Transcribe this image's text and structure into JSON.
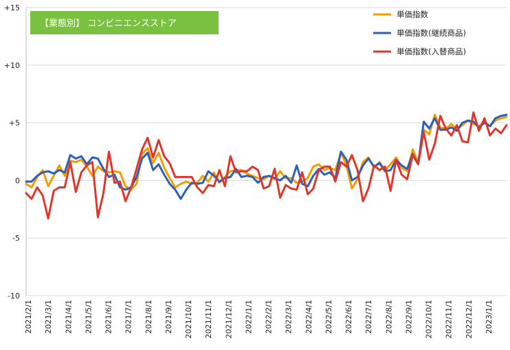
{
  "chart_data": {
    "type": "line",
    "title": "【業態別】 コンビニエンスストア",
    "title_bg_color": "#7ac142",
    "ylim": [
      -10,
      15
    ],
    "y_ticks": [
      15,
      10,
      5,
      0,
      -5,
      -10
    ],
    "y_tick_labels": [
      "+15",
      "+10",
      "+5",
      "0",
      "-5",
      "-10"
    ],
    "grid": "horizontal",
    "legend_position": "top-right",
    "x_tick_labels": [
      "2021/2/1",
      "2021/3/1",
      "2021/4/1",
      "2021/5/1",
      "2021/6/1",
      "2021/7/1",
      "2021/8/1",
      "2021/9/1",
      "2021/10/1",
      "2021/11/1",
      "2021/12/1",
      "2022/1/1",
      "2022/2/1",
      "2022/3/1",
      "2022/4/1",
      "2022/5/1",
      "2022/6/1",
      "2022/7/1",
      "2022/8/1",
      "2022/9/1",
      "2022/10/1",
      "2022/11/1",
      "2022/12/1",
      "2023/1/1"
    ],
    "series": [
      {
        "name": "単価指数",
        "color": "#f59c00",
        "values": [
          -0.3,
          -0.6,
          0.3,
          0.9,
          -0.5,
          0.4,
          1.3,
          0.4,
          1.7,
          1.6,
          1.8,
          1.2,
          0.4,
          1.2,
          0.8,
          0.7,
          0.8,
          0.7,
          -0.5,
          -0.8,
          -0.3,
          2.3,
          2.8,
          1.5,
          2.4,
          1.1,
          0.2,
          -0.6,
          -0.3,
          -0.1,
          -0.3,
          -0.2,
          0.4,
          -0.1,
          0.7,
          -0.2,
          0.3,
          0.8,
          0.9,
          0.9,
          0.6,
          0.4,
          0.2,
          0.1,
          0.4,
          0.1,
          0.8,
          0.2,
          0.2,
          -0.2,
          -0.1,
          0.2,
          1.2,
          1.4,
          0.9,
          1.1,
          0.9,
          2.4,
          1.3,
          -0.7,
          0.1,
          1.6,
          2.0,
          1.1,
          1.6,
          0.9,
          1.4,
          2.0,
          1.1,
          0.8,
          2.7,
          1.6,
          4.4,
          4.0,
          5.7,
          4.6,
          4.5,
          4.9,
          4.4,
          4.8,
          5.2,
          4.9,
          4.7,
          5.1,
          4.7,
          5.2,
          5.4,
          5.5
        ]
      },
      {
        "name": "単価指数(継続商品)",
        "color": "#2e5fb8",
        "values": [
          -0.1,
          -0.1,
          0.4,
          0.7,
          0.8,
          0.6,
          0.9,
          0.7,
          2.2,
          1.9,
          2.1,
          1.4,
          2.0,
          1.9,
          1.0,
          0.3,
          0.5,
          -0.6,
          -0.8,
          -0.6,
          0.3,
          1.9,
          2.4,
          0.9,
          1.4,
          0.5,
          -0.3,
          -0.8,
          -1.6,
          -0.8,
          -0.2,
          -0.3,
          -0.2,
          0.8,
          0.4,
          -0.1,
          0.2,
          0.3,
          1.0,
          0.3,
          0.4,
          0.3,
          -0.2,
          0.3,
          0.4,
          0.2,
          0.0,
          0.4,
          -0.2,
          1.3,
          -0.3,
          -0.5,
          0.4,
          1.0,
          0.5,
          0.7,
          0.2,
          2.5,
          1.8,
          0.0,
          0.3,
          1.3,
          1.9,
          1.2,
          1.5,
          0.8,
          0.9,
          1.8,
          1.3,
          1.0,
          2.3,
          1.4,
          5.1,
          4.5,
          5.4,
          4.4,
          4.4,
          4.6,
          4.3,
          5.0,
          5.2,
          5.1,
          4.6,
          5.0,
          4.7,
          5.4,
          5.6,
          5.7
        ]
      },
      {
        "name": "単価指数(入替商品)",
        "color": "#e0362a",
        "values": [
          -1.1,
          -1.6,
          -0.6,
          -1.3,
          -3.3,
          -0.9,
          -0.6,
          -0.6,
          1.6,
          -1.0,
          0.7,
          1.3,
          1.6,
          -3.2,
          -1.1,
          2.5,
          -0.2,
          -0.1,
          -1.8,
          -0.6,
          1.0,
          2.7,
          3.7,
          2.0,
          3.5,
          2.1,
          1.5,
          0.3,
          0.3,
          0.3,
          0.3,
          -0.6,
          -1.1,
          -0.4,
          -0.5,
          0.9,
          -0.5,
          2.1,
          0.7,
          0.8,
          0.8,
          1.2,
          0.9,
          -0.7,
          -0.5,
          1.0,
          -1.5,
          -0.4,
          -0.7,
          -0.8,
          0.7,
          -1.2,
          -0.7,
          0.9,
          1.2,
          1.2,
          -0.1,
          1.6,
          1.2,
          2.2,
          0.9,
          -1.8,
          -0.7,
          1.3,
          0.9,
          1.2,
          -0.9,
          1.8,
          0.5,
          0.1,
          2.2,
          1.4,
          4.2,
          1.8,
          3.2,
          5.6,
          4.5,
          3.9,
          4.8,
          3.4,
          3.3,
          5.9,
          4.3,
          5.4,
          3.9,
          4.5,
          4.1,
          4.8
        ]
      }
    ]
  }
}
